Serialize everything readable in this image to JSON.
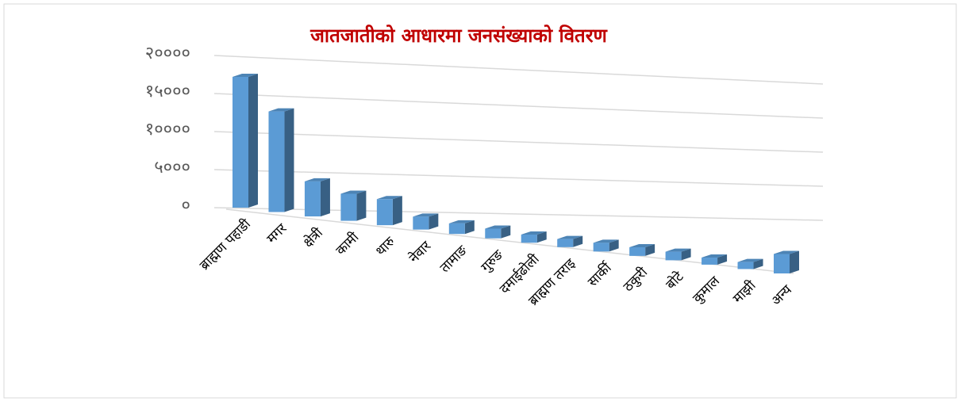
{
  "chart_data": {
    "type": "bar3d",
    "title": "जातजातीको आधारमा जनसंख्याको वितरण",
    "categories": [
      "ब्राह्मण पहाडी",
      "मगर",
      "क्षेत्री",
      "कामी",
      "थारु",
      "नेवार",
      "तामाङ",
      "गुरुङ",
      "दमाईढोली",
      "ब्राह्मण तराइ",
      "सार्की",
      "ठकुरी",
      "बोटे",
      "कुमाल",
      "माझी",
      "अन्य"
    ],
    "values": [
      16500,
      12800,
      4500,
      3500,
      3400,
      1700,
      1400,
      1300,
      1100,
      1100,
      1200,
      1200,
      1200,
      1000,
      1000,
      2800
    ],
    "color": "#5b9bd5",
    "ylim": [
      0,
      20000
    ],
    "yticks": [
      {
        "value": 0,
        "label": "०"
      },
      {
        "value": 5000,
        "label": "५०००"
      },
      {
        "value": 10000,
        "label": "१००००"
      },
      {
        "value": 15000,
        "label": "१५०००"
      },
      {
        "value": 20000,
        "label": "२००००"
      }
    ],
    "grid": true
  }
}
